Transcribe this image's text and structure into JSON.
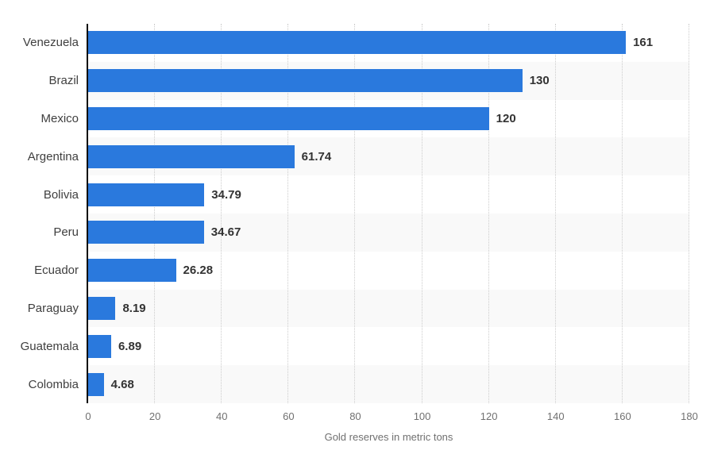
{
  "chart_data": {
    "type": "bar",
    "orientation": "horizontal",
    "title": "",
    "xlabel": "Gold reserves in metric tons",
    "ylabel": "",
    "categories": [
      "Venezuela",
      "Brazil",
      "Mexico",
      "Argentina",
      "Bolivia",
      "Peru",
      "Ecuador",
      "Paraguay",
      "Guatemala",
      "Colombia"
    ],
    "values": [
      161,
      130,
      120,
      61.74,
      34.79,
      34.67,
      26.28,
      8.19,
      6.89,
      4.68
    ],
    "value_labels": [
      "161",
      "130",
      "120",
      "61.74",
      "34.79",
      "34.67",
      "26.28",
      "8.19",
      "6.89",
      "4.68"
    ],
    "xlim": [
      0,
      180
    ],
    "x_ticks": [
      0,
      20,
      40,
      60,
      80,
      100,
      120,
      140,
      160,
      180
    ],
    "grid": "vertical-dotted",
    "legend": "none",
    "colors": {
      "bar": "#2A79DD",
      "band_alt": "#f9f9f9",
      "band_base": "#ffffff",
      "gridline": "#cccccc",
      "axis_line": "#0a0a0a",
      "category_label": "#3f3f3f",
      "value_label": "#333333",
      "tick_label": "#707070",
      "axis_title": "#707070",
      "background": "#ffffff"
    }
  }
}
